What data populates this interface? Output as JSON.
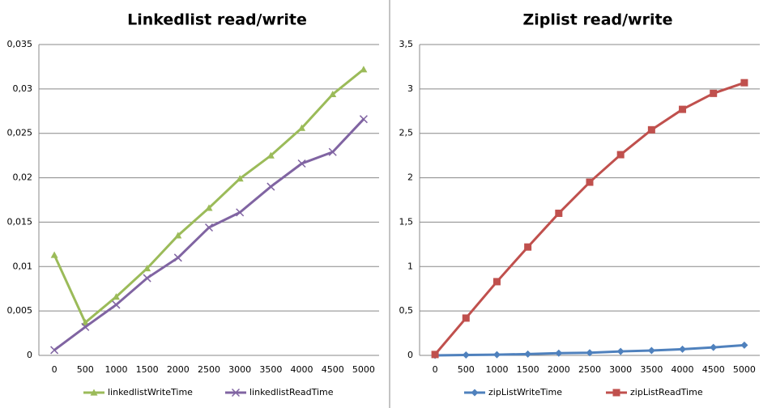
{
  "chart_data": [
    {
      "type": "line",
      "title": "Linkedlist read/write",
      "categories": [
        "0",
        "500",
        "1000",
        "1500",
        "2000",
        "2500",
        "3000",
        "3500",
        "4000",
        "4500",
        "5000"
      ],
      "series": [
        {
          "name": "linkedlistWriteTime",
          "color": "#9bbb59",
          "marker": "triangle",
          "values": [
            0.0113,
            0.0037,
            0.0066,
            0.0098,
            0.0135,
            0.0166,
            0.0199,
            0.0225,
            0.0256,
            0.0294,
            0.0322
          ]
        },
        {
          "name": "linkedlistReadTime",
          "color": "#8064a2",
          "marker": "cross",
          "values": [
            0.0006,
            0.0032,
            0.0057,
            0.0087,
            0.011,
            0.0144,
            0.0161,
            0.019,
            0.0216,
            0.0229,
            0.0266
          ]
        }
      ],
      "ylim": [
        0,
        0.035
      ],
      "yticks": [
        0,
        {
          "value": 0.005,
          "label": "0,005"
        },
        {
          "value": 0.01,
          "label": "0,01"
        },
        {
          "value": 0.015,
          "label": "0,015"
        },
        {
          "value": 0.02,
          "label": "0,02"
        },
        {
          "value": 0.025,
          "label": "0,025"
        },
        {
          "value": 0.03,
          "label": "0,03"
        },
        {
          "value": 0.035,
          "label": "0,035"
        }
      ],
      "grid": true,
      "legend": "bottom"
    },
    {
      "type": "line",
      "title": "Ziplist read/write",
      "categories": [
        "0",
        "500",
        "1000",
        "1500",
        "2000",
        "2500",
        "3000",
        "3500",
        "4000",
        "4500",
        "5000"
      ],
      "series": [
        {
          "name": "zipListWriteTime",
          "color": "#4f81bd",
          "marker": "diamond",
          "values": [
            0,
            0.005,
            0.008,
            0.015,
            0.025,
            0.03,
            0.045,
            0.055,
            0.07,
            0.09,
            0.115
          ]
        },
        {
          "name": "zipListReadTime",
          "color": "#c0504d",
          "marker": "square",
          "values": [
            0.01,
            0.42,
            0.83,
            1.22,
            1.6,
            1.95,
            2.26,
            2.54,
            2.77,
            2.95,
            3.07
          ]
        }
      ],
      "ylim": [
        0,
        3.5
      ],
      "yticks": [
        0,
        {
          "value": 0.5,
          "label": "0,5"
        },
        1,
        {
          "value": 1.5,
          "label": "1,5"
        },
        2,
        {
          "value": 2.5,
          "label": "2,5"
        },
        3,
        {
          "value": 3.5,
          "label": "3,5"
        }
      ],
      "grid": true,
      "legend": "bottom"
    }
  ]
}
